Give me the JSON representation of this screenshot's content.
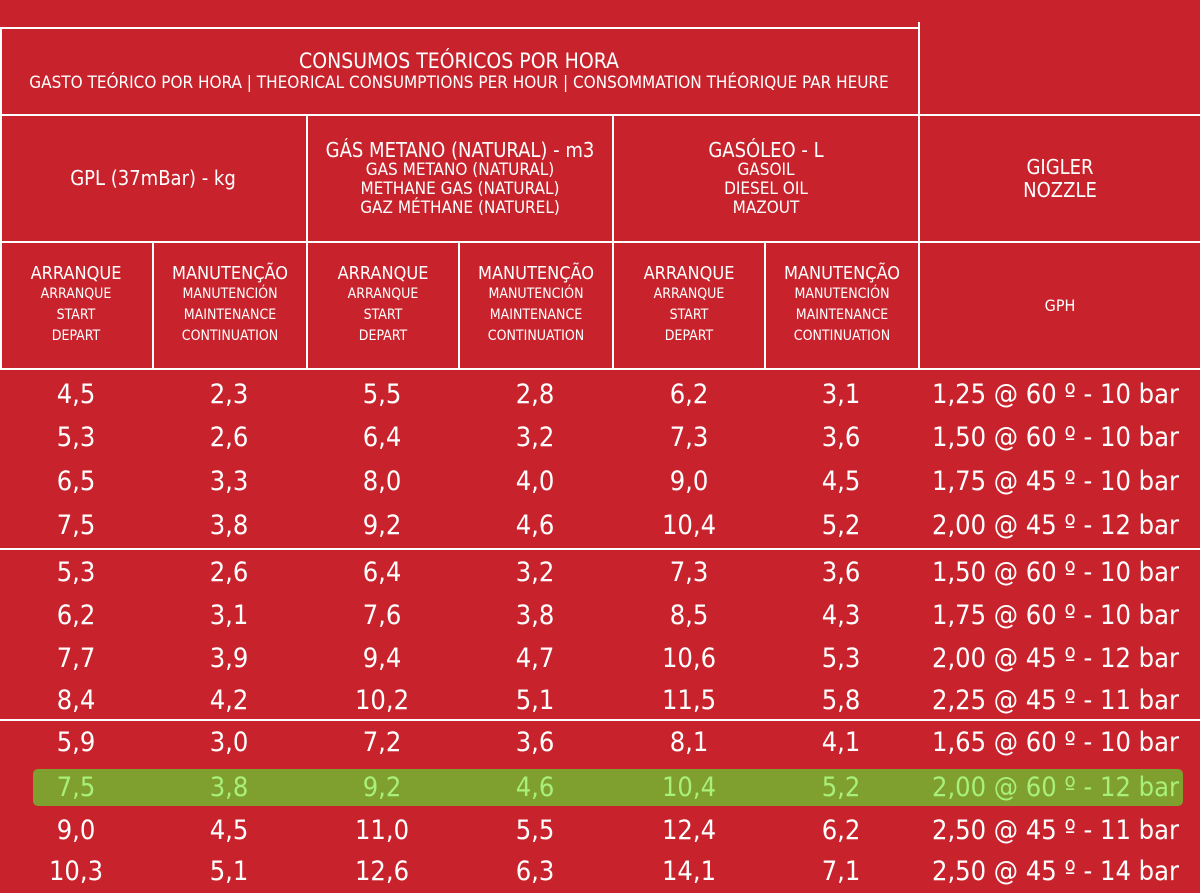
{
  "title": {
    "main": "CONSUMOS TEÓRICOS POR HORA",
    "sub": "GASTO TEÓRICO POR HORA | THEORICAL CONSUMPTIONS PER HOUR | CONSOMMATION THÉORIQUE PAR HEURE"
  },
  "fuels": {
    "gpl": {
      "l1": "GPL (37mBar) - kg"
    },
    "gas": {
      "l1": "GÁS METANO (NATURAL) - m3",
      "l2": "GAS METANO (NATURAL)",
      "l3": "METHANE GAS (NATURAL)",
      "l4": "GAZ MÉTHANE (NATUREL)"
    },
    "oil": {
      "l1": "GASÓLEO - L",
      "l2": "GASOIL",
      "l3": "DIESEL OIL",
      "l4": "MAZOUT"
    },
    "nozzle": {
      "l1": "GIGLER",
      "l2": "NOZZLE"
    }
  },
  "phases": {
    "start": {
      "l1": "ARRANQUE",
      "l2": "ARRANQUE",
      "l3": "START",
      "l4": "DEPART"
    },
    "maint": {
      "l1": "MANUTENÇÃO",
      "l2": "MANUTENCIÓN",
      "l3": "MAINTENANCE",
      "l4": "CONTINUATION"
    },
    "unit": "GPH"
  },
  "rows": [
    {
      "v": [
        "4,5",
        "2,3",
        "5,5",
        "2,8",
        "6,2",
        "3,1"
      ],
      "nozzle": "1,25 @ 60 º - 10 bar"
    },
    {
      "v": [
        "5,3",
        "2,6",
        "6,4",
        "3,2",
        "7,3",
        "3,6"
      ],
      "nozzle": "1,50 @ 60 º - 10 bar"
    },
    {
      "v": [
        "6,5",
        "3,3",
        "8,0",
        "4,0",
        "9,0",
        "4,5"
      ],
      "nozzle": "1,75 @ 45 º - 10 bar"
    },
    {
      "v": [
        "7,5",
        "3,8",
        "9,2",
        "4,6",
        "10,4",
        "5,2"
      ],
      "nozzle": "2,00 @ 45 º - 12 bar"
    },
    {
      "v": [
        "5,3",
        "2,6",
        "6,4",
        "3,2",
        "7,3",
        "3,6"
      ],
      "nozzle": "1,50 @ 60 º - 10 bar"
    },
    {
      "v": [
        "6,2",
        "3,1",
        "7,6",
        "3,8",
        "8,5",
        "4,3"
      ],
      "nozzle": "1,75 @ 60 º - 10 bar"
    },
    {
      "v": [
        "7,7",
        "3,9",
        "9,4",
        "4,7",
        "10,6",
        "5,3"
      ],
      "nozzle": "2,00 @ 45 º - 12 bar"
    },
    {
      "v": [
        "8,4",
        "4,2",
        "10,2",
        "5,1",
        "11,5",
        "5,8"
      ],
      "nozzle": "2,25 @ 45 º - 11 bar"
    },
    {
      "v": [
        "5,9",
        "3,0",
        "7,2",
        "3,6",
        "8,1",
        "4,1"
      ],
      "nozzle": "1,65 @ 60 º - 10 bar"
    },
    {
      "v": [
        "7,5",
        "3,8",
        "9,2",
        "4,6",
        "10,4",
        "5,2"
      ],
      "nozzle": "2,00 @ 60 º - 12 bar"
    },
    {
      "v": [
        "9,0",
        "4,5",
        "11,0",
        "5,5",
        "12,4",
        "6,2"
      ],
      "nozzle": "2,50 @ 45 º - 11 bar"
    },
    {
      "v": [
        "10,3",
        "5,1",
        "12,6",
        "6,3",
        "14,1",
        "7,1"
      ],
      "nozzle": "2,50 @ 45 º - 14 bar"
    }
  ],
  "highlight": {
    "row_index": 9,
    "background": "#7f9f2f",
    "text_color": "#a8f07a"
  },
  "colors": {
    "background": "#c8232c",
    "text": "#ffffff",
    "lines": "#ffffff"
  }
}
